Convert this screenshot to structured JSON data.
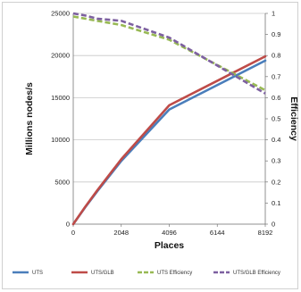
{
  "chart_data": {
    "type": "line",
    "title": "",
    "xlabel": "Places",
    "ylabel": "Millions nodes/s",
    "y2label": "Efficiency",
    "x_ticks": [
      "0",
      "2048",
      "4096",
      "6144",
      "8192"
    ],
    "y_ticks": [
      "0",
      "5000",
      "10000",
      "15000",
      "20000",
      "25000"
    ],
    "y2_ticks": [
      "0",
      "0.1",
      "0.2",
      "0.3",
      "0.4",
      "0.5",
      "0.6",
      "0.7",
      "0.8",
      "0.9",
      "1"
    ],
    "xlim": [
      0,
      8192
    ],
    "ylim": [
      0,
      25000
    ],
    "y2lim": [
      0,
      1
    ],
    "grid": "horizontal",
    "legend_position": "bottom",
    "x": [
      0,
      512,
      1024,
      2048,
      4096,
      8192
    ],
    "series": [
      {
        "name": "UTS",
        "axis": "left",
        "style": "solid",
        "color": "#4a7ebb",
        "values": [
          0,
          2000,
          3900,
          7500,
          13600,
          19400
        ]
      },
      {
        "name": "UTS/GLB",
        "axis": "left",
        "style": "solid",
        "color": "#be4b48",
        "values": [
          0,
          2050,
          4000,
          7700,
          14100,
          19900
        ]
      },
      {
        "name": "UTS Efficiency",
        "axis": "right",
        "style": "dashed",
        "color": "#98b954",
        "values": [
          0.985,
          0.975,
          0.965,
          0.945,
          0.875,
          0.635
        ]
      },
      {
        "name": "UTS/GLB Efficiency",
        "axis": "right",
        "style": "dashed",
        "color": "#7d60a0",
        "values": [
          1.0,
          0.99,
          0.975,
          0.965,
          0.885,
          0.62
        ]
      }
    ]
  }
}
